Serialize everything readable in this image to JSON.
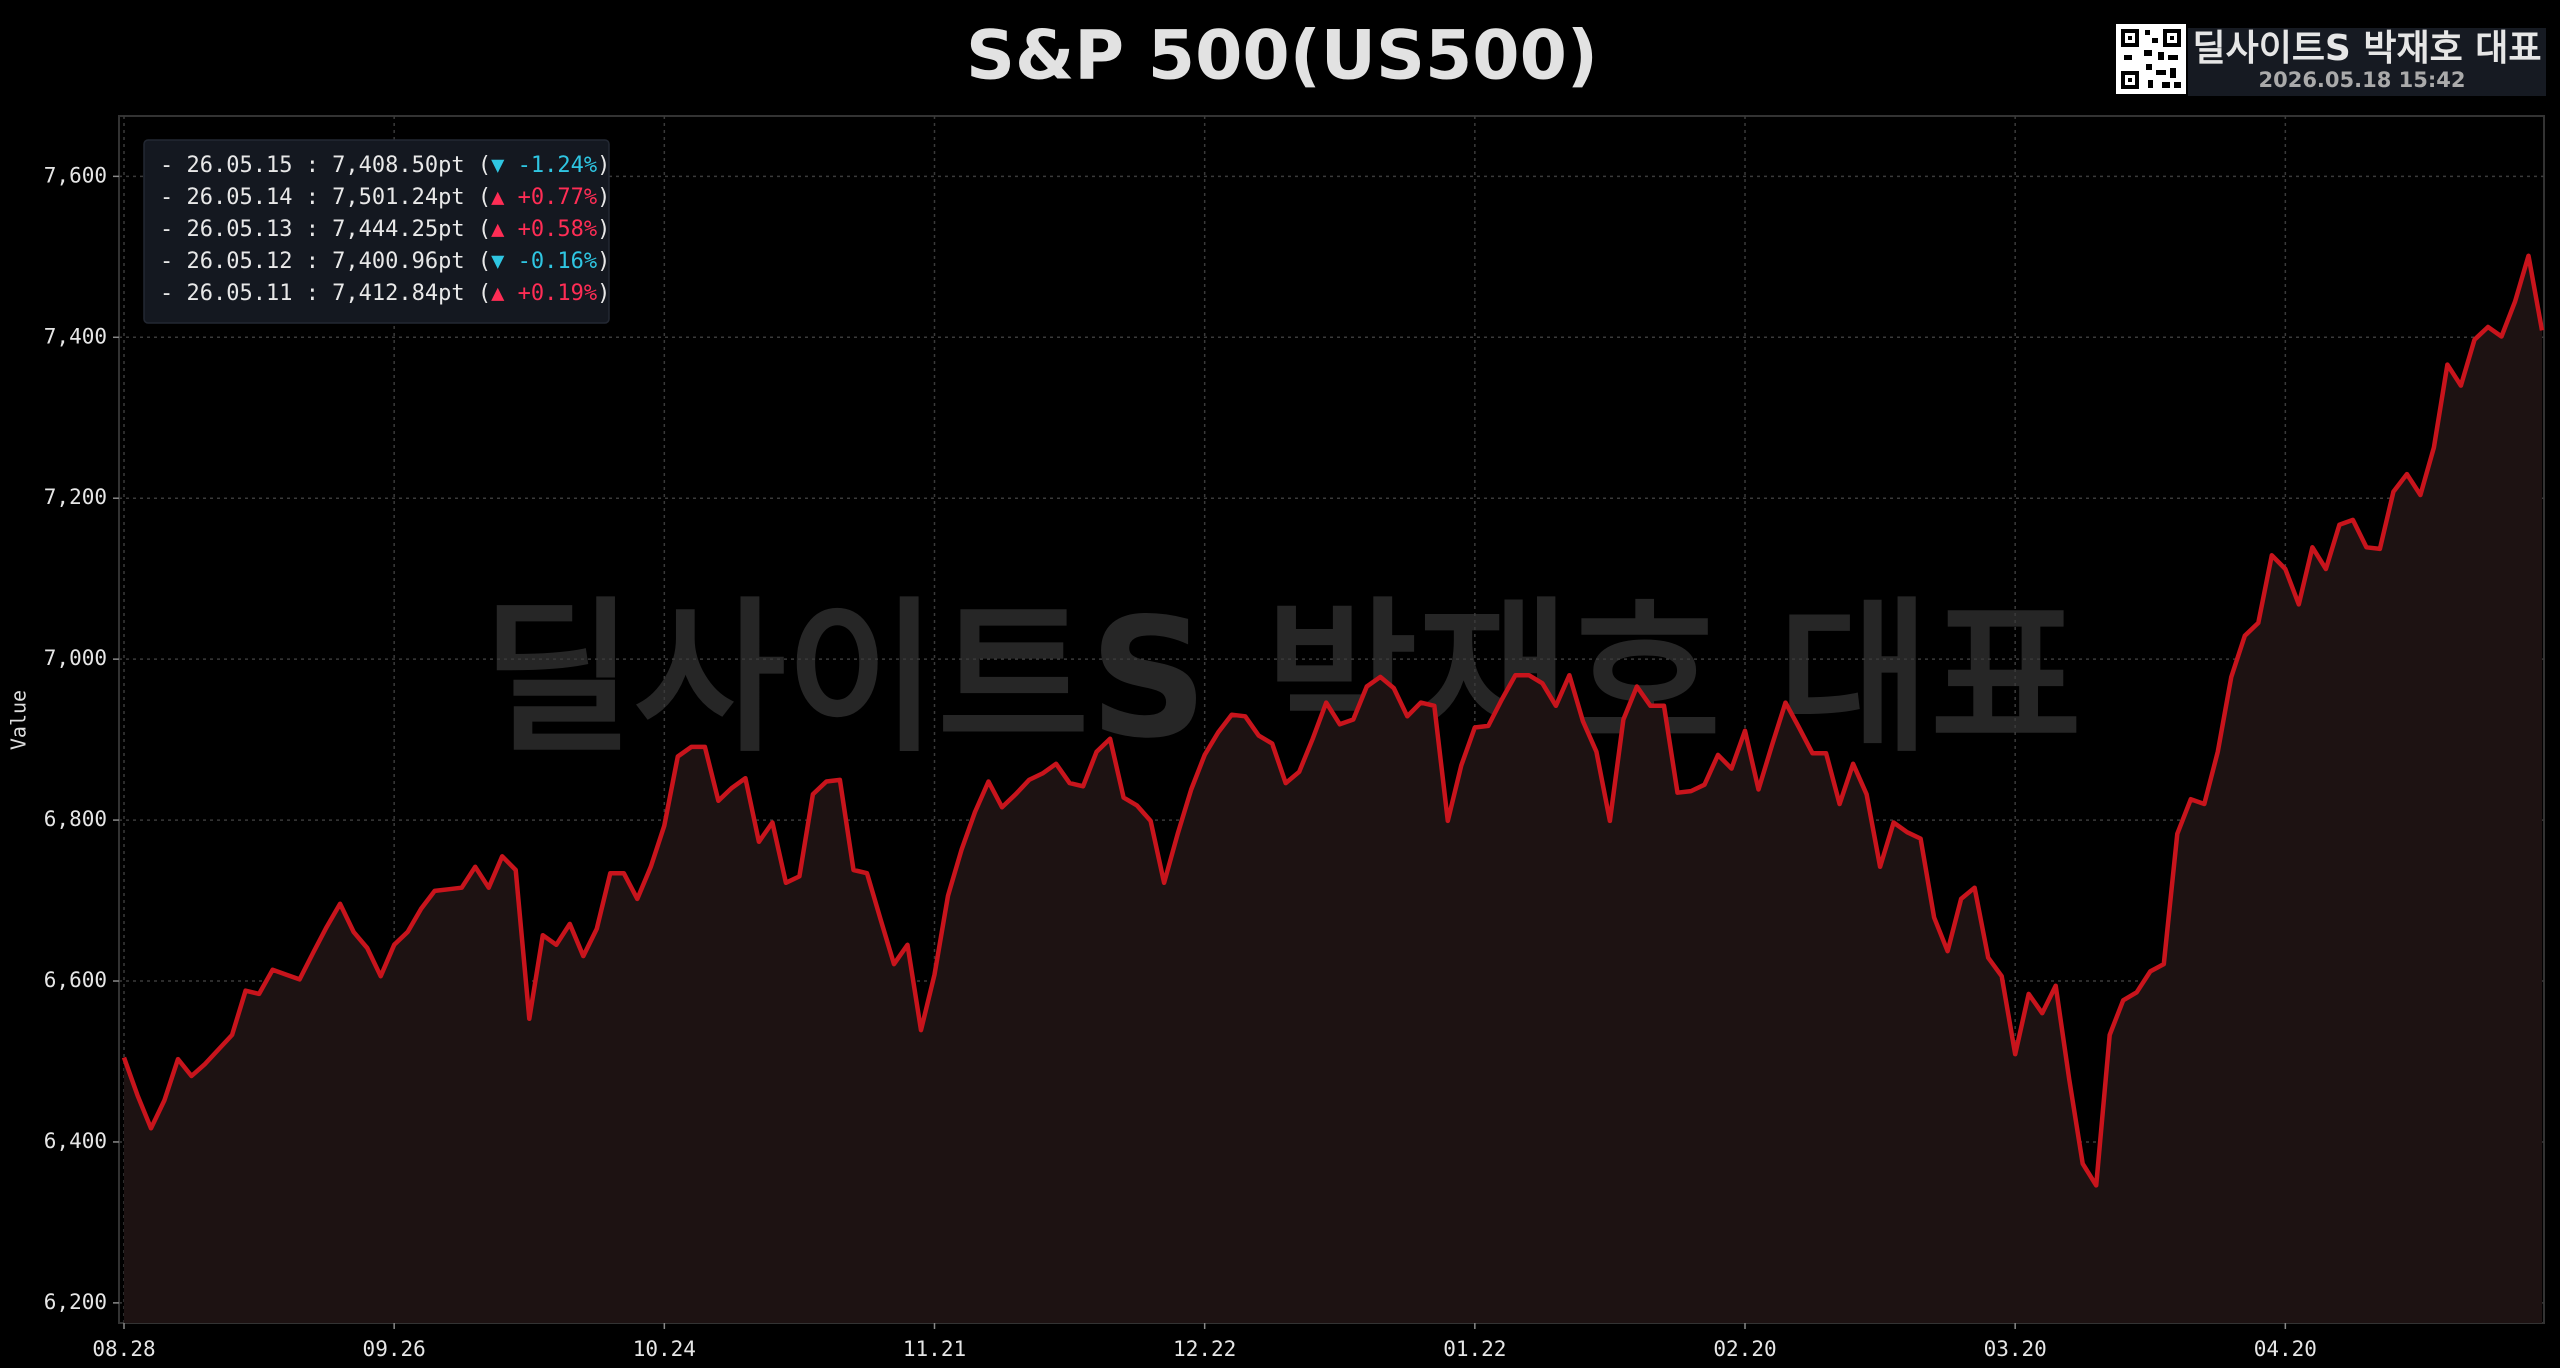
{
  "chart_data": {
    "type": "line",
    "title": "S&P 500(US500)",
    "badge": {
      "name": "딜사이트S 박재호 대표",
      "timestamp": "2026.05.18 15:42"
    },
    "watermark": "딜사이트S 박재호 대표",
    "y_label": "Value",
    "categories": [
      "08.28",
      null,
      null,
      null,
      null,
      null,
      null,
      null,
      null,
      null,
      null,
      null,
      null,
      null,
      null,
      null,
      null,
      null,
      null,
      null,
      "09.26",
      null,
      null,
      null,
      null,
      null,
      null,
      null,
      null,
      null,
      null,
      null,
      null,
      null,
      null,
      null,
      null,
      null,
      null,
      null,
      "10.24",
      null,
      null,
      null,
      null,
      null,
      null,
      null,
      null,
      null,
      null,
      null,
      null,
      null,
      null,
      null,
      null,
      null,
      null,
      null,
      "11.21",
      null,
      null,
      null,
      null,
      null,
      null,
      null,
      null,
      null,
      null,
      null,
      null,
      null,
      null,
      null,
      null,
      null,
      null,
      null,
      "12.22",
      null,
      null,
      null,
      null,
      null,
      null,
      null,
      null,
      null,
      null,
      null,
      null,
      null,
      null,
      null,
      null,
      null,
      null,
      null,
      "01.22",
      null,
      null,
      null,
      null,
      null,
      null,
      null,
      null,
      null,
      null,
      null,
      null,
      null,
      null,
      null,
      null,
      null,
      null,
      null,
      "02.20",
      null,
      null,
      null,
      null,
      null,
      null,
      null,
      null,
      null,
      null,
      null,
      null,
      null,
      null,
      null,
      null,
      null,
      null,
      null,
      "03.20",
      null,
      null,
      null,
      null,
      null,
      null,
      null,
      null,
      null,
      null,
      null,
      null,
      null,
      null,
      null,
      null,
      null,
      null,
      null,
      "04.20",
      null,
      null,
      null,
      null,
      null,
      null,
      null,
      null,
      null,
      null,
      null,
      null,
      null,
      null,
      null,
      null,
      null,
      null,
      null
    ],
    "series": [
      {
        "name": "S&P 500",
        "color": "#c8141c",
        "fill": "#1d1212",
        "values": [
          6505,
          6458,
          6417,
          6452,
          6503,
          6482,
          6497,
          6515,
          6533,
          6588,
          6584,
          6614,
          6608,
          6602,
          6635,
          6667,
          6696,
          6661,
          6641,
          6606,
          6645,
          6661,
          6690,
          6712,
          6714,
          6716,
          6742,
          6716,
          6755,
          6738,
          6553,
          6657,
          6645,
          6671,
          6631,
          6665,
          6734,
          6734,
          6702,
          6742,
          6793,
          6879,
          6891,
          6891,
          6824,
          6840,
          6852,
          6773,
          6797,
          6722,
          6730,
          6832,
          6848,
          6850,
          6738,
          6734,
          6677,
          6621,
          6645,
          6539,
          6608,
          6706,
          6763,
          6810,
          6848,
          6816,
          6832,
          6850,
          6858,
          6870,
          6846,
          6842,
          6885,
          6901,
          6828,
          6818,
          6799,
          6722,
          6783,
          6838,
          6881,
          6909,
          6931,
          6929,
          6905,
          6895,
          6846,
          6860,
          6901,
          6946,
          6919,
          6925,
          6966,
          6978,
          6964,
          6929,
          6946,
          6942,
          6799,
          6868,
          6915,
          6917,
          6950,
          6980,
          6980,
          6970,
          6942,
          6980,
          6923,
          6885,
          6799,
          6925,
          6966,
          6942,
          6942,
          6834,
          6836,
          6844,
          6881,
          6864,
          6911,
          6838,
          6893,
          6946,
          6915,
          6883,
          6883,
          6820,
          6870,
          6832,
          6742,
          6797,
          6785,
          6777,
          6679,
          6637,
          6702,
          6716,
          6629,
          6606,
          6509,
          6584,
          6560,
          6594,
          6478,
          6373,
          6346,
          6533,
          6576,
          6586,
          6612,
          6621,
          6783,
          6826,
          6820,
          6885,
          6978,
          7029,
          7045,
          7129,
          7112,
          7068,
          7139,
          7112,
          7167,
          7173,
          7139,
          7137,
          7208,
          7230,
          7204,
          7263,
          7366,
          7340,
          7397,
          7412.84,
          7400.96,
          7444.25,
          7501.24,
          7408.5
        ]
      }
    ],
    "ylim": [
      6175,
      7675
    ],
    "yticks": [
      {
        "value": 6200,
        "label": "6,200"
      },
      {
        "value": 6400,
        "label": "6,400"
      },
      {
        "value": 6600,
        "label": "6,600"
      },
      {
        "value": 6800,
        "label": "6,800"
      },
      {
        "value": 7000,
        "label": "7,000"
      },
      {
        "value": 7200,
        "label": "7,200"
      },
      {
        "value": 7400,
        "label": "7,400"
      },
      {
        "value": 7600,
        "label": "7,600"
      }
    ],
    "grid": true,
    "annotations": [
      {
        "text": "- 26.05.15 : 7,408.50pt (",
        "change": "▼ -1.24%",
        "color": "#2fc6e2",
        "close": ")"
      },
      {
        "text": "- 26.05.14 : 7,501.24pt (",
        "change": "▲ +0.77%",
        "color": "#ff2d55",
        "close": ")"
      },
      {
        "text": "- 26.05.13 : 7,444.25pt (",
        "change": "▲ +0.58%",
        "color": "#ff2d55",
        "close": ")"
      },
      {
        "text": "- 26.05.12 : 7,400.96pt (",
        "change": "▼ -0.16%",
        "color": "#2fc6e2",
        "close": ")"
      },
      {
        "text": "- 26.05.11 : 7,412.84pt (",
        "change": "▲ +0.19%",
        "color": "#ff2d55",
        "close": ")"
      }
    ]
  }
}
